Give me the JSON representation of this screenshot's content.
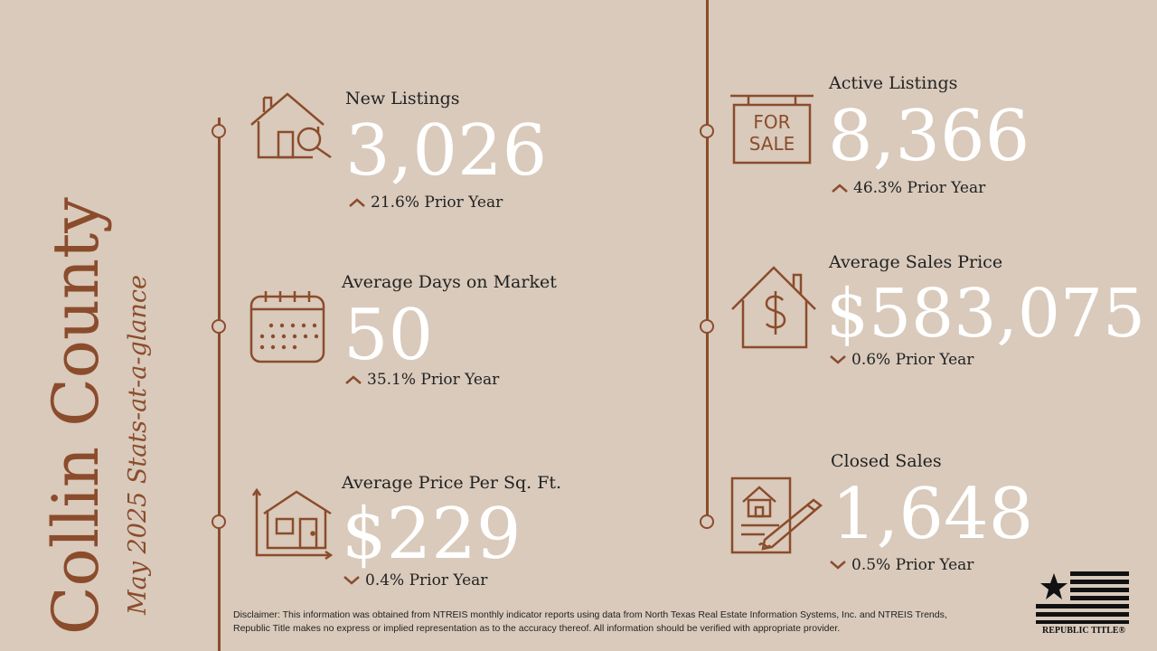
{
  "title": {
    "county": "Collin County",
    "subtitle": "May 2025 Stats-at-a-glance"
  },
  "stats": [
    {
      "label": "New Listings",
      "value": "3,026",
      "delta": "21.6% Prior Year",
      "direction": "up",
      "icon": "house-search-icon"
    },
    {
      "label": "Average Days on Market",
      "value": "50",
      "delta": "35.1% Prior Year",
      "direction": "up",
      "icon": "calendar-icon"
    },
    {
      "label": "Average Price Per Sq. Ft.",
      "value": "$229",
      "delta": "0.4% Prior Year",
      "direction": "down",
      "icon": "house-chart-icon"
    },
    {
      "label": "Active Listings",
      "value": "8,366",
      "delta": "46.3% Prior Year",
      "direction": "up",
      "icon": "for-sale-sign-icon"
    },
    {
      "label": "Average Sales Price",
      "value": "$583,075",
      "delta": "0.6% Prior Year",
      "direction": "down",
      "icon": "house-dollar-icon"
    },
    {
      "label": "Closed Sales",
      "value": "1,648",
      "delta": "0.5% Prior Year",
      "direction": "down",
      "icon": "contract-sign-icon"
    }
  ],
  "sign": {
    "line1": "FOR",
    "line2": "SALE"
  },
  "disclaimer": "Disclaimer: This information was obtained from NTREIS monthly indicator reports using data from North Texas Real Estate Information Systems, Inc. and NTREIS Trends, Republic Title makes no express or implied representation as to the accuracy thereof. All information should be verified with appropriate provider.",
  "logo": {
    "text": "REPUBLIC TITLE®"
  },
  "colors": {
    "background": "#d9cabb",
    "accent": "#8b4c2c",
    "value": "#ffffff"
  }
}
